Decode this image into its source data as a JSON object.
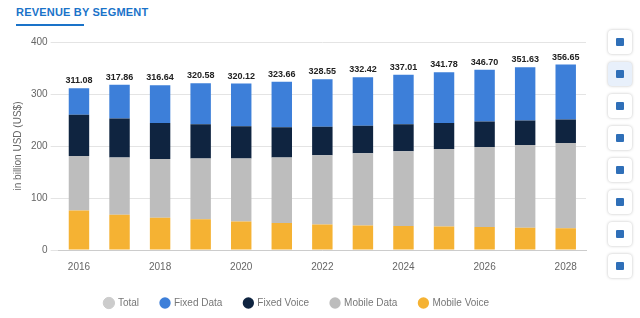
{
  "chart_data": {
    "type": "bar",
    "title": "REVENUE BY SEGMENT",
    "y_label": "in billion USD (US$)",
    "categories": [
      "2016",
      null,
      "2018",
      null,
      "2020",
      null,
      "2022",
      null,
      "2024",
      null,
      "2026",
      null,
      "2028"
    ],
    "series": [
      {
        "name": "Total",
        "type": "line",
        "color": "#cccccc",
        "values": [
          311.08,
          317.86,
          316.64,
          320.58,
          320.12,
          323.66,
          328.55,
          332.42,
          337.01,
          341.78,
          346.7,
          351.63,
          356.65
        ],
        "value_labels": [
          "311.08",
          "317.86",
          "316.64",
          "320.58",
          "320.12",
          "323.66",
          "328.55",
          "332.42",
          "337.01",
          "341.78",
          "346.70",
          "351.63",
          "356.65"
        ]
      },
      {
        "name": "Fixed Data",
        "color": "#3d7fd9",
        "values": [
          51.08,
          64.86,
          72.64,
          78.58,
          82.12,
          87.66,
          91.55,
          93.42,
          95.01,
          97.78,
          99.7,
          102.63,
          105.65
        ]
      },
      {
        "name": "Fixed Voice",
        "color": "#0f2440",
        "values": [
          79,
          75,
          69,
          66,
          62,
          58,
          55,
          53,
          52,
          50,
          49,
          47,
          45
        ]
      },
      {
        "name": "Mobile Data",
        "color": "#bdbdbd",
        "values": [
          105,
          110,
          113,
          117,
          121,
          126,
          133,
          139,
          144,
          149,
          154,
          159,
          164
        ]
      },
      {
        "name": "Mobile Voice",
        "color": "#f5b233",
        "values": [
          76,
          68,
          62,
          59,
          55,
          52,
          49,
          47,
          46,
          45,
          44,
          43,
          42
        ]
      }
    ],
    "stacked": true,
    "data_labels": true,
    "legend": "bottom",
    "grid": true,
    "ylim": [
      0,
      400
    ],
    "yticks": [
      0,
      100,
      200,
      300,
      400
    ]
  }
}
